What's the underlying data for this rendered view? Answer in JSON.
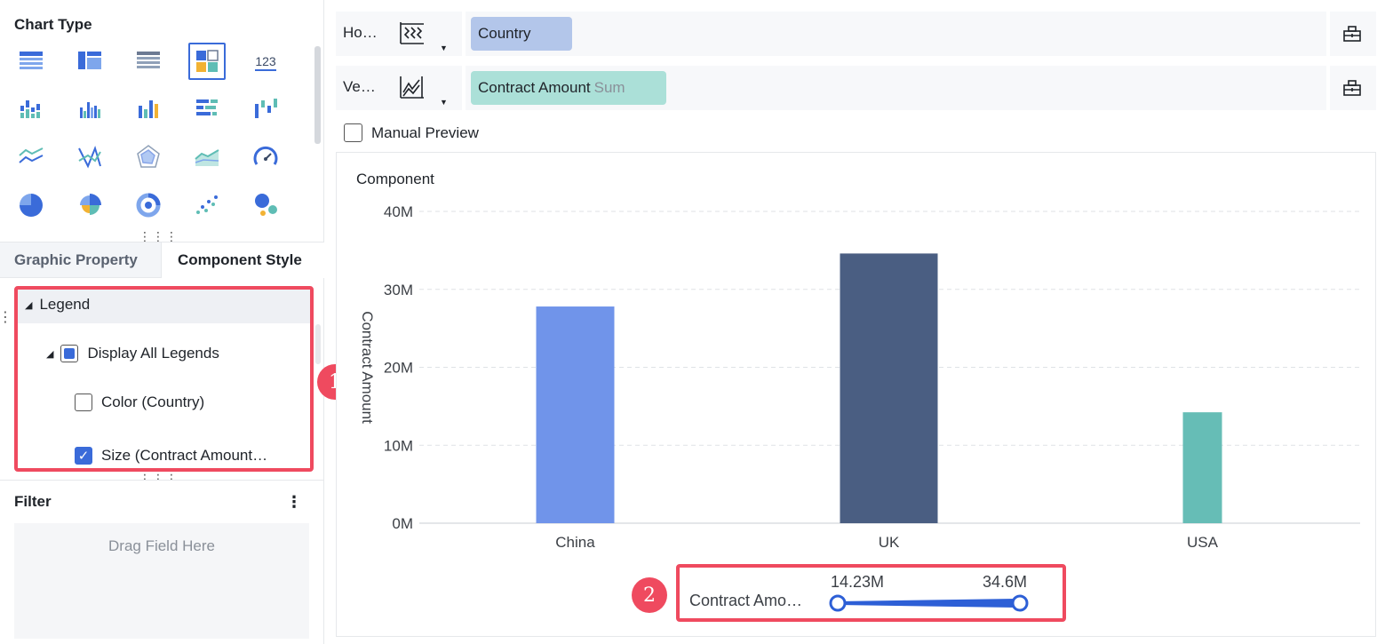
{
  "left_panel": {
    "chart_type_title": "Chart Type",
    "chart_types": [
      "table-icon",
      "crosstab-icon",
      "detail-table-icon",
      "multi-series-icon",
      "number-card-icon",
      "grouped-column-icon",
      "stacked-column-icon",
      "column-icon",
      "bar-icon",
      "waterfall-icon",
      "line-icon",
      "parallel-line-icon",
      "radar-icon",
      "area-icon",
      "gauge-icon",
      "pie-icon",
      "rose-pie-icon",
      "donut-icon",
      "scatter-icon",
      "bubble-icon"
    ],
    "selected_chart_type": "multi-series-icon",
    "tabs": {
      "graphic": "Graphic Property",
      "component": "Component Style"
    },
    "legend": {
      "title": "Legend",
      "display_all": "Display All Legends",
      "items": [
        {
          "label": "Color (Country)",
          "checked": false
        },
        {
          "label": "Size (Contract Amount…",
          "checked": true
        }
      ]
    },
    "filter": {
      "title": "Filter",
      "placeholder": "Drag Field Here",
      "menu_icon": "more-vertical-icon"
    }
  },
  "shelves": {
    "horizontal": {
      "label": "Ho…",
      "field": "Country",
      "color": "#b3c6ea"
    },
    "vertical": {
      "label": "Ve…",
      "field": "Contract Amount",
      "agg": "Sum",
      "color": "#abe0d8"
    }
  },
  "manual_preview": {
    "label": "Manual Preview",
    "checked": false
  },
  "chart": {
    "title": "Component",
    "annotation_1": "1",
    "annotation_2": "2"
  },
  "chart_data": {
    "type": "bar",
    "categories": [
      "China",
      "UK",
      "USA"
    ],
    "values": [
      27.8,
      34.6,
      14.23
    ],
    "colors": [
      "#7094ea",
      "#4a5e82",
      "#66bdb6"
    ],
    "ylabel": "Contract Amount",
    "ylim": [
      0,
      40
    ],
    "yticks": [
      "0M",
      "10M",
      "20M",
      "30M",
      "40M"
    ],
    "ytick_values": [
      0,
      10,
      20,
      30,
      40
    ],
    "grid": true,
    "legend": {
      "label": "Contract Amo…",
      "min_label": "14.23M",
      "max_label": "34.6M"
    }
  }
}
